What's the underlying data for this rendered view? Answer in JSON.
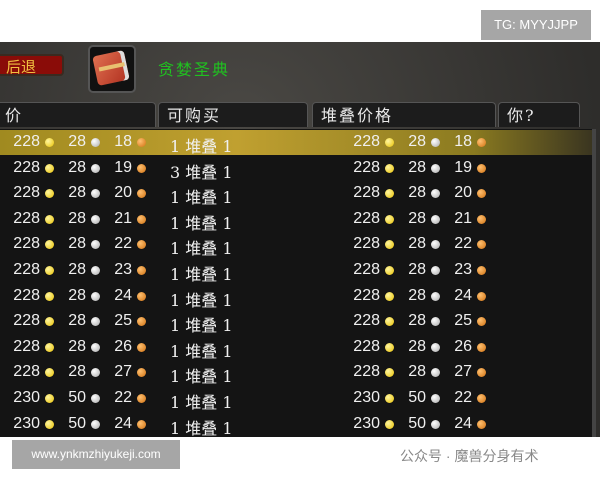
{
  "watermark_top": "TG: MYYJJPP",
  "watermark_bottom": "www.ynkmzhiyukeji.com",
  "watermark_wechat": "公众号 · 魔兽分身有术",
  "back_button": "后退",
  "item_name": "贪婪圣典",
  "item_icon": "red-book-icon",
  "columns": [
    "价",
    "可购买",
    "堆叠价格",
    "你?"
  ],
  "coin_colors": {
    "gold": "#e8c000",
    "silver": "#aaaaaa",
    "copper": "#d07010"
  },
  "rows": [
    {
      "price": [
        "228",
        "28",
        "18"
      ],
      "stack": "1 堆叠 1",
      "stack_price": [
        "228",
        "28",
        "18"
      ],
      "selected": true
    },
    {
      "price": [
        "228",
        "28",
        "19"
      ],
      "stack": "3 堆叠 1",
      "stack_price": [
        "228",
        "28",
        "19"
      ]
    },
    {
      "price": [
        "228",
        "28",
        "20"
      ],
      "stack": "1 堆叠 1",
      "stack_price": [
        "228",
        "28",
        "20"
      ]
    },
    {
      "price": [
        "228",
        "28",
        "21"
      ],
      "stack": "1 堆叠 1",
      "stack_price": [
        "228",
        "28",
        "21"
      ]
    },
    {
      "price": [
        "228",
        "28",
        "22"
      ],
      "stack": "1 堆叠 1",
      "stack_price": [
        "228",
        "28",
        "22"
      ]
    },
    {
      "price": [
        "228",
        "28",
        "23"
      ],
      "stack": "1 堆叠 1",
      "stack_price": [
        "228",
        "28",
        "23"
      ]
    },
    {
      "price": [
        "228",
        "28",
        "24"
      ],
      "stack": "1 堆叠 1",
      "stack_price": [
        "228",
        "28",
        "24"
      ]
    },
    {
      "price": [
        "228",
        "28",
        "25"
      ],
      "stack": "1 堆叠 1",
      "stack_price": [
        "228",
        "28",
        "25"
      ]
    },
    {
      "price": [
        "228",
        "28",
        "26"
      ],
      "stack": "1 堆叠 1",
      "stack_price": [
        "228",
        "28",
        "26"
      ]
    },
    {
      "price": [
        "228",
        "28",
        "27"
      ],
      "stack": "1 堆叠 1",
      "stack_price": [
        "228",
        "28",
        "27"
      ]
    },
    {
      "price": [
        "230",
        "50",
        "22"
      ],
      "stack": "1 堆叠 1",
      "stack_price": [
        "230",
        "50",
        "22"
      ]
    },
    {
      "price": [
        "230",
        "50",
        "24"
      ],
      "stack": "1 堆叠 1",
      "stack_price": [
        "230",
        "50",
        "24"
      ]
    }
  ]
}
